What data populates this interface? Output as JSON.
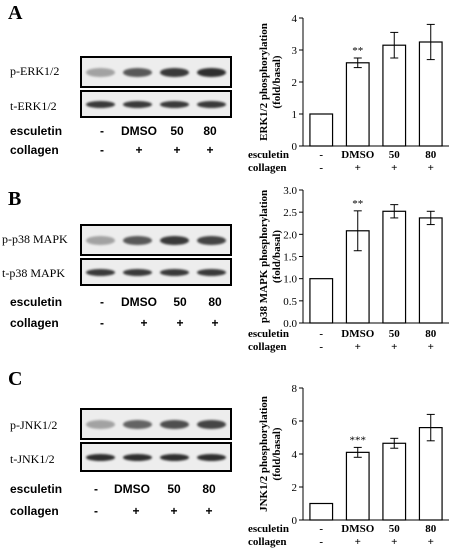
{
  "conditions": {
    "esculetin_label": "esculetin",
    "collagen_label": "collagen",
    "esculetin_values": [
      "-",
      "DMSO",
      "50",
      "80"
    ],
    "collagen_values": [
      "-",
      "+",
      "+",
      "+"
    ]
  },
  "panels": [
    {
      "letter": "A",
      "blot_labels": [
        "p-ERK1/2",
        "t-ERK1/2"
      ],
      "p_band_levels": [
        0.35,
        0.7,
        0.85,
        0.9
      ],
      "t_band_levels": [
        0.85,
        0.85,
        0.85,
        0.85
      ]
    },
    {
      "letter": "B",
      "blot_labels": [
        "p-p38 MAPK",
        "t-p38 MAPK"
      ],
      "p_band_levels": [
        0.35,
        0.7,
        0.85,
        0.8
      ],
      "t_band_levels": [
        0.85,
        0.85,
        0.85,
        0.85
      ]
    },
    {
      "letter": "C",
      "blot_labels": [
        "p-JNK1/2",
        "t-JNK1/2"
      ],
      "p_band_levels": [
        0.35,
        0.65,
        0.75,
        0.8
      ],
      "t_band_levels": [
        0.9,
        0.9,
        0.9,
        0.9
      ]
    }
  ],
  "colors": {
    "bar_fill": "#ffffff",
    "band": "#1a1a1a"
  },
  "chart_data": [
    {
      "type": "bar",
      "ylabel": "ERK1/2 phosphorylation (fold/basal)",
      "ylim": [
        0,
        4
      ],
      "yticks": [
        "0",
        "1",
        "2",
        "3",
        "4"
      ],
      "categories": [
        "-",
        "DMSO",
        "50",
        "80"
      ],
      "values": [
        1.0,
        2.6,
        3.15,
        3.25
      ],
      "errors": [
        0,
        0.15,
        0.4,
        0.55
      ],
      "annotations": [
        "",
        "**",
        "",
        ""
      ]
    },
    {
      "type": "bar",
      "ylabel": "p38 MAPK phosphorylation (fold/basal)",
      "ylim": [
        0,
        3
      ],
      "yticks": [
        "0.0",
        "0.5",
        "1.0",
        "1.5",
        "2.0",
        "2.5",
        "3.0"
      ],
      "categories": [
        "-",
        "DMSO",
        "50",
        "80"
      ],
      "values": [
        1.0,
        2.08,
        2.52,
        2.37
      ],
      "errors": [
        0,
        0.45,
        0.15,
        0.15
      ],
      "annotations": [
        "",
        "**",
        "",
        ""
      ]
    },
    {
      "type": "bar",
      "ylabel": "JNK1/2 phosphorylation (fold/basal)",
      "ylim": [
        0,
        8
      ],
      "yticks": [
        "0",
        "2",
        "4",
        "6",
        "8"
      ],
      "categories": [
        "-",
        "DMSO",
        "50",
        "80"
      ],
      "values": [
        1.0,
        4.1,
        4.65,
        5.6
      ],
      "errors": [
        0,
        0.3,
        0.3,
        0.8
      ],
      "annotations": [
        "",
        "***",
        "",
        ""
      ]
    }
  ]
}
